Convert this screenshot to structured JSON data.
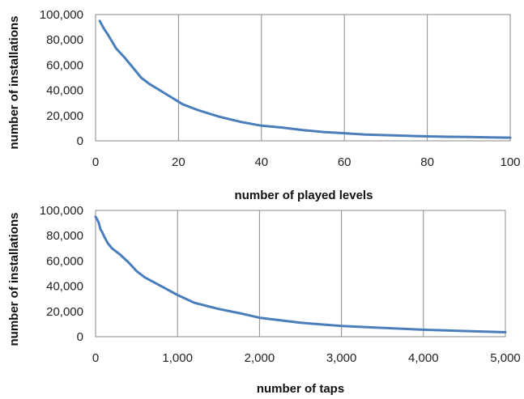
{
  "colors": {
    "series": "#4a7ebb",
    "grid": "#8a8a8a"
  },
  "chart_data": [
    {
      "type": "line",
      "xlabel": "number of played levels",
      "ylabel": "number of installations",
      "xlim": [
        0,
        100
      ],
      "ylim": [
        0,
        100000
      ],
      "xticks": [
        0,
        20,
        40,
        60,
        80,
        100
      ],
      "xtick_labels": [
        "0",
        "20",
        "40",
        "60",
        "80",
        "100"
      ],
      "yticks": [
        0,
        20000,
        40000,
        60000,
        80000,
        100000
      ],
      "ytick_labels": [
        "0",
        "20,000",
        "40,000",
        "60,000",
        "80,000",
        "100,000"
      ],
      "grid": "vertical",
      "series": [
        {
          "x": [
            1,
            2,
            3,
            5,
            7,
            9,
            11,
            13,
            15,
            18,
            21,
            25,
            30,
            35,
            40,
            45,
            50,
            55,
            60,
            65,
            70,
            75,
            80,
            85,
            90,
            95,
            100
          ],
          "values": [
            95000,
            89000,
            84000,
            73000,
            66000,
            58000,
            50000,
            45000,
            41000,
            35000,
            29000,
            24000,
            19000,
            15000,
            12000,
            10500,
            8500,
            7000,
            6000,
            5000,
            4500,
            4000,
            3500,
            3200,
            3000,
            2700,
            2500
          ]
        }
      ]
    },
    {
      "type": "line",
      "xlabel": "number of taps",
      "ylabel": "number of installations",
      "xlim": [
        0,
        5000
      ],
      "ylim": [
        0,
        100000
      ],
      "xticks": [
        0,
        1000,
        2000,
        3000,
        4000,
        5000
      ],
      "xtick_labels": [
        "0",
        "1,000",
        "2,000",
        "3,000",
        "4,000",
        "5,000"
      ],
      "yticks": [
        0,
        20000,
        40000,
        60000,
        80000,
        100000
      ],
      "ytick_labels": [
        "0",
        "20,000",
        "40,000",
        "60,000",
        "80,000",
        "100,000"
      ],
      "grid": "vertical",
      "series": [
        {
          "x": [
            0,
            20,
            40,
            60,
            80,
            100,
            150,
            200,
            300,
            400,
            500,
            600,
            800,
            1000,
            1200,
            1500,
            1800,
            2000,
            2500,
            3000,
            3500,
            4000,
            4500,
            5000
          ],
          "values": [
            95000,
            93000,
            90000,
            85000,
            83000,
            80000,
            74000,
            70000,
            65000,
            59000,
            52000,
            47000,
            40000,
            33000,
            27000,
            22000,
            18000,
            15000,
            11000,
            8500,
            7000,
            5500,
            4500,
            3500
          ]
        }
      ]
    }
  ]
}
